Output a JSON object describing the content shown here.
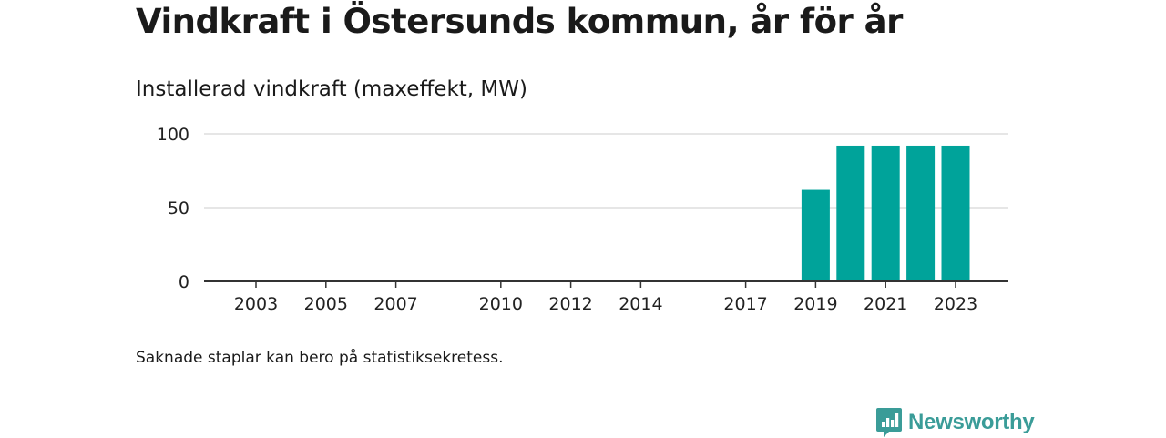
{
  "header": {
    "title": "Vindkraft i Östersunds kommun, år för år",
    "subtitle": "Installerad vindkraft (maxeffekt, MW)"
  },
  "footer": {
    "note": "Saknade staplar kan bero på statistiksekretess.",
    "brand": "Newsworthy"
  },
  "colors": {
    "bar": "#00a39a",
    "brand": "#3a9c98",
    "grid": "#dddddd",
    "axis": "#333333"
  },
  "icons": {
    "brand_logo": "bar-chart-speech-bubble-icon"
  },
  "chart_data": {
    "type": "bar",
    "categories": [
      "2003",
      "2004",
      "2005",
      "2006",
      "2007",
      "2008",
      "2009",
      "2010",
      "2011",
      "2012",
      "2013",
      "2014",
      "2015",
      "2016",
      "2017",
      "2018",
      "2019",
      "2020",
      "2021",
      "2022",
      "2023"
    ],
    "values": [
      0,
      0,
      0,
      0,
      0,
      0,
      0,
      0,
      0,
      0,
      0,
      0,
      0,
      0,
      0,
      0,
      62,
      92,
      92,
      92,
      92
    ],
    "x_tick_labels": [
      "2003",
      "2005",
      "2007",
      "2010",
      "2012",
      "2014",
      "2017",
      "2019",
      "2021",
      "2023"
    ],
    "y_ticks": [
      0,
      50,
      100
    ],
    "ylim": [
      0,
      100
    ],
    "title": "Vindkraft i Östersunds kommun, år för år",
    "subtitle": "Installerad vindkraft (maxeffekt, MW)",
    "xlabel": "",
    "ylabel": "",
    "grid": true,
    "legend": "none"
  }
}
